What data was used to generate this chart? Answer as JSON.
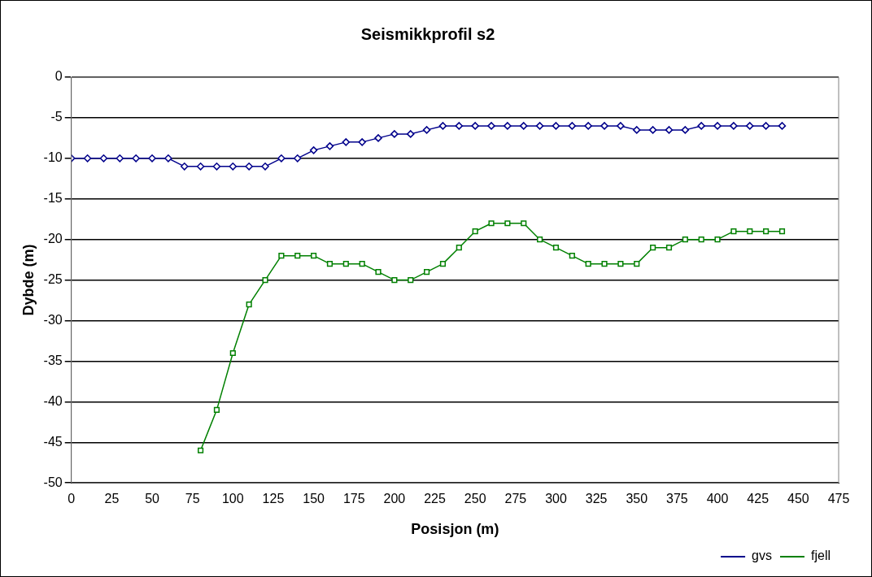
{
  "chart_data": {
    "type": "line",
    "title": "Seismikkprofil s2",
    "xlabel": "Posisjon (m)",
    "ylabel": "Dybde (m)",
    "xlim": [
      0,
      475
    ],
    "xticks": [
      0,
      25,
      50,
      75,
      100,
      125,
      150,
      175,
      200,
      225,
      250,
      275,
      300,
      325,
      350,
      375,
      400,
      425,
      450,
      475
    ],
    "ylim": [
      -50,
      0
    ],
    "yticks": [
      -50,
      -45,
      -40,
      -35,
      -30,
      -25,
      -20,
      -15,
      -10,
      -5,
      0
    ],
    "grid": "y",
    "legend": "bottom right",
    "line_style": "solid",
    "series": [
      {
        "name": "gvs",
        "color": "#00008b",
        "marker": "diamond",
        "x": [
          0,
          10,
          20,
          30,
          40,
          50,
          60,
          70,
          80,
          90,
          100,
          110,
          120,
          130,
          140,
          150,
          160,
          170,
          180,
          190,
          200,
          210,
          220,
          230,
          240,
          250,
          260,
          270,
          280,
          290,
          300,
          310,
          320,
          330,
          340,
          350,
          360,
          370,
          380,
          390,
          400,
          410,
          420,
          430,
          440
        ],
        "values": [
          -10,
          -10,
          -10,
          -10,
          -10,
          -10,
          -10,
          -11,
          -11,
          -11,
          -11,
          -11,
          -11,
          -10,
          -10,
          -9,
          -8.5,
          -8,
          -8,
          -7.5,
          -7,
          -7,
          -6.5,
          -6,
          -6,
          -6,
          -6,
          -6,
          -6,
          -6,
          -6,
          -6,
          -6,
          -6,
          -6,
          -6.5,
          -6.5,
          -6.5,
          -6.5,
          -6,
          -6,
          -6,
          -6,
          -6,
          -6
        ]
      },
      {
        "name": "fjell",
        "color": "#008000",
        "marker": "square",
        "x": [
          80,
          90,
          100,
          110,
          120,
          130,
          140,
          150,
          160,
          170,
          180,
          190,
          200,
          210,
          220,
          230,
          240,
          250,
          260,
          270,
          280,
          290,
          300,
          310,
          320,
          330,
          340,
          350,
          360,
          370,
          380,
          390,
          400,
          410,
          420,
          430,
          440
        ],
        "values": [
          -46,
          -41,
          -34,
          -28,
          -25,
          -22,
          -22,
          -22,
          -23,
          -23,
          -23,
          -24,
          -25,
          -25,
          -24,
          -23,
          -21,
          -19,
          -18,
          -18,
          -18,
          -20,
          -21,
          -22,
          -23,
          -23,
          -23,
          -23,
          -21,
          -21,
          -20,
          -20,
          -20,
          -19,
          -19,
          -19,
          -19
        ]
      }
    ]
  }
}
